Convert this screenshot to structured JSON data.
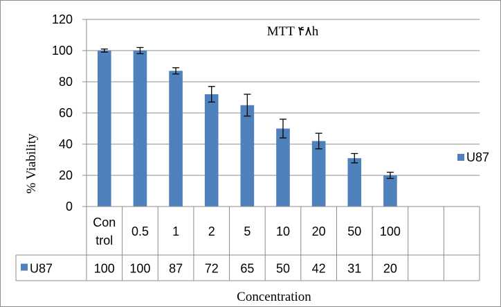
{
  "colors": {
    "bar": "#4F81BD",
    "bar_edge": "#3C6AA3",
    "grid": "#8C8C8C",
    "frame": "#8C8C8C",
    "text": "#000000",
    "error_bar": "#000000"
  },
  "chart_data": {
    "type": "bar",
    "title": "MTT ۴۸h",
    "xlabel": "Concentration",
    "ylabel": "% Viability",
    "ylim": [
      0,
      120
    ],
    "yticks": [
      "0",
      "20",
      "40",
      "60",
      "80",
      "100",
      "120"
    ],
    "grid": true,
    "legend_placement": "right",
    "categories": [
      [
        "Con",
        "trol"
      ],
      [
        "0.5"
      ],
      [
        "1"
      ],
      [
        "2"
      ],
      [
        "5"
      ],
      [
        "10"
      ],
      [
        "20"
      ],
      [
        "50"
      ],
      [
        "100"
      ],
      [
        ""
      ],
      [
        ""
      ]
    ],
    "series": [
      {
        "name": "U87",
        "values": [
          100,
          100,
          87,
          72,
          65,
          50,
          42,
          31,
          20,
          null,
          null
        ],
        "table_values": [
          "100",
          "100",
          "87",
          "72",
          "65",
          "50",
          "42",
          "31",
          "20",
          "",
          ""
        ],
        "errors": [
          1,
          2,
          2,
          5,
          7,
          6,
          5,
          3,
          2,
          null,
          null
        ]
      }
    ]
  }
}
